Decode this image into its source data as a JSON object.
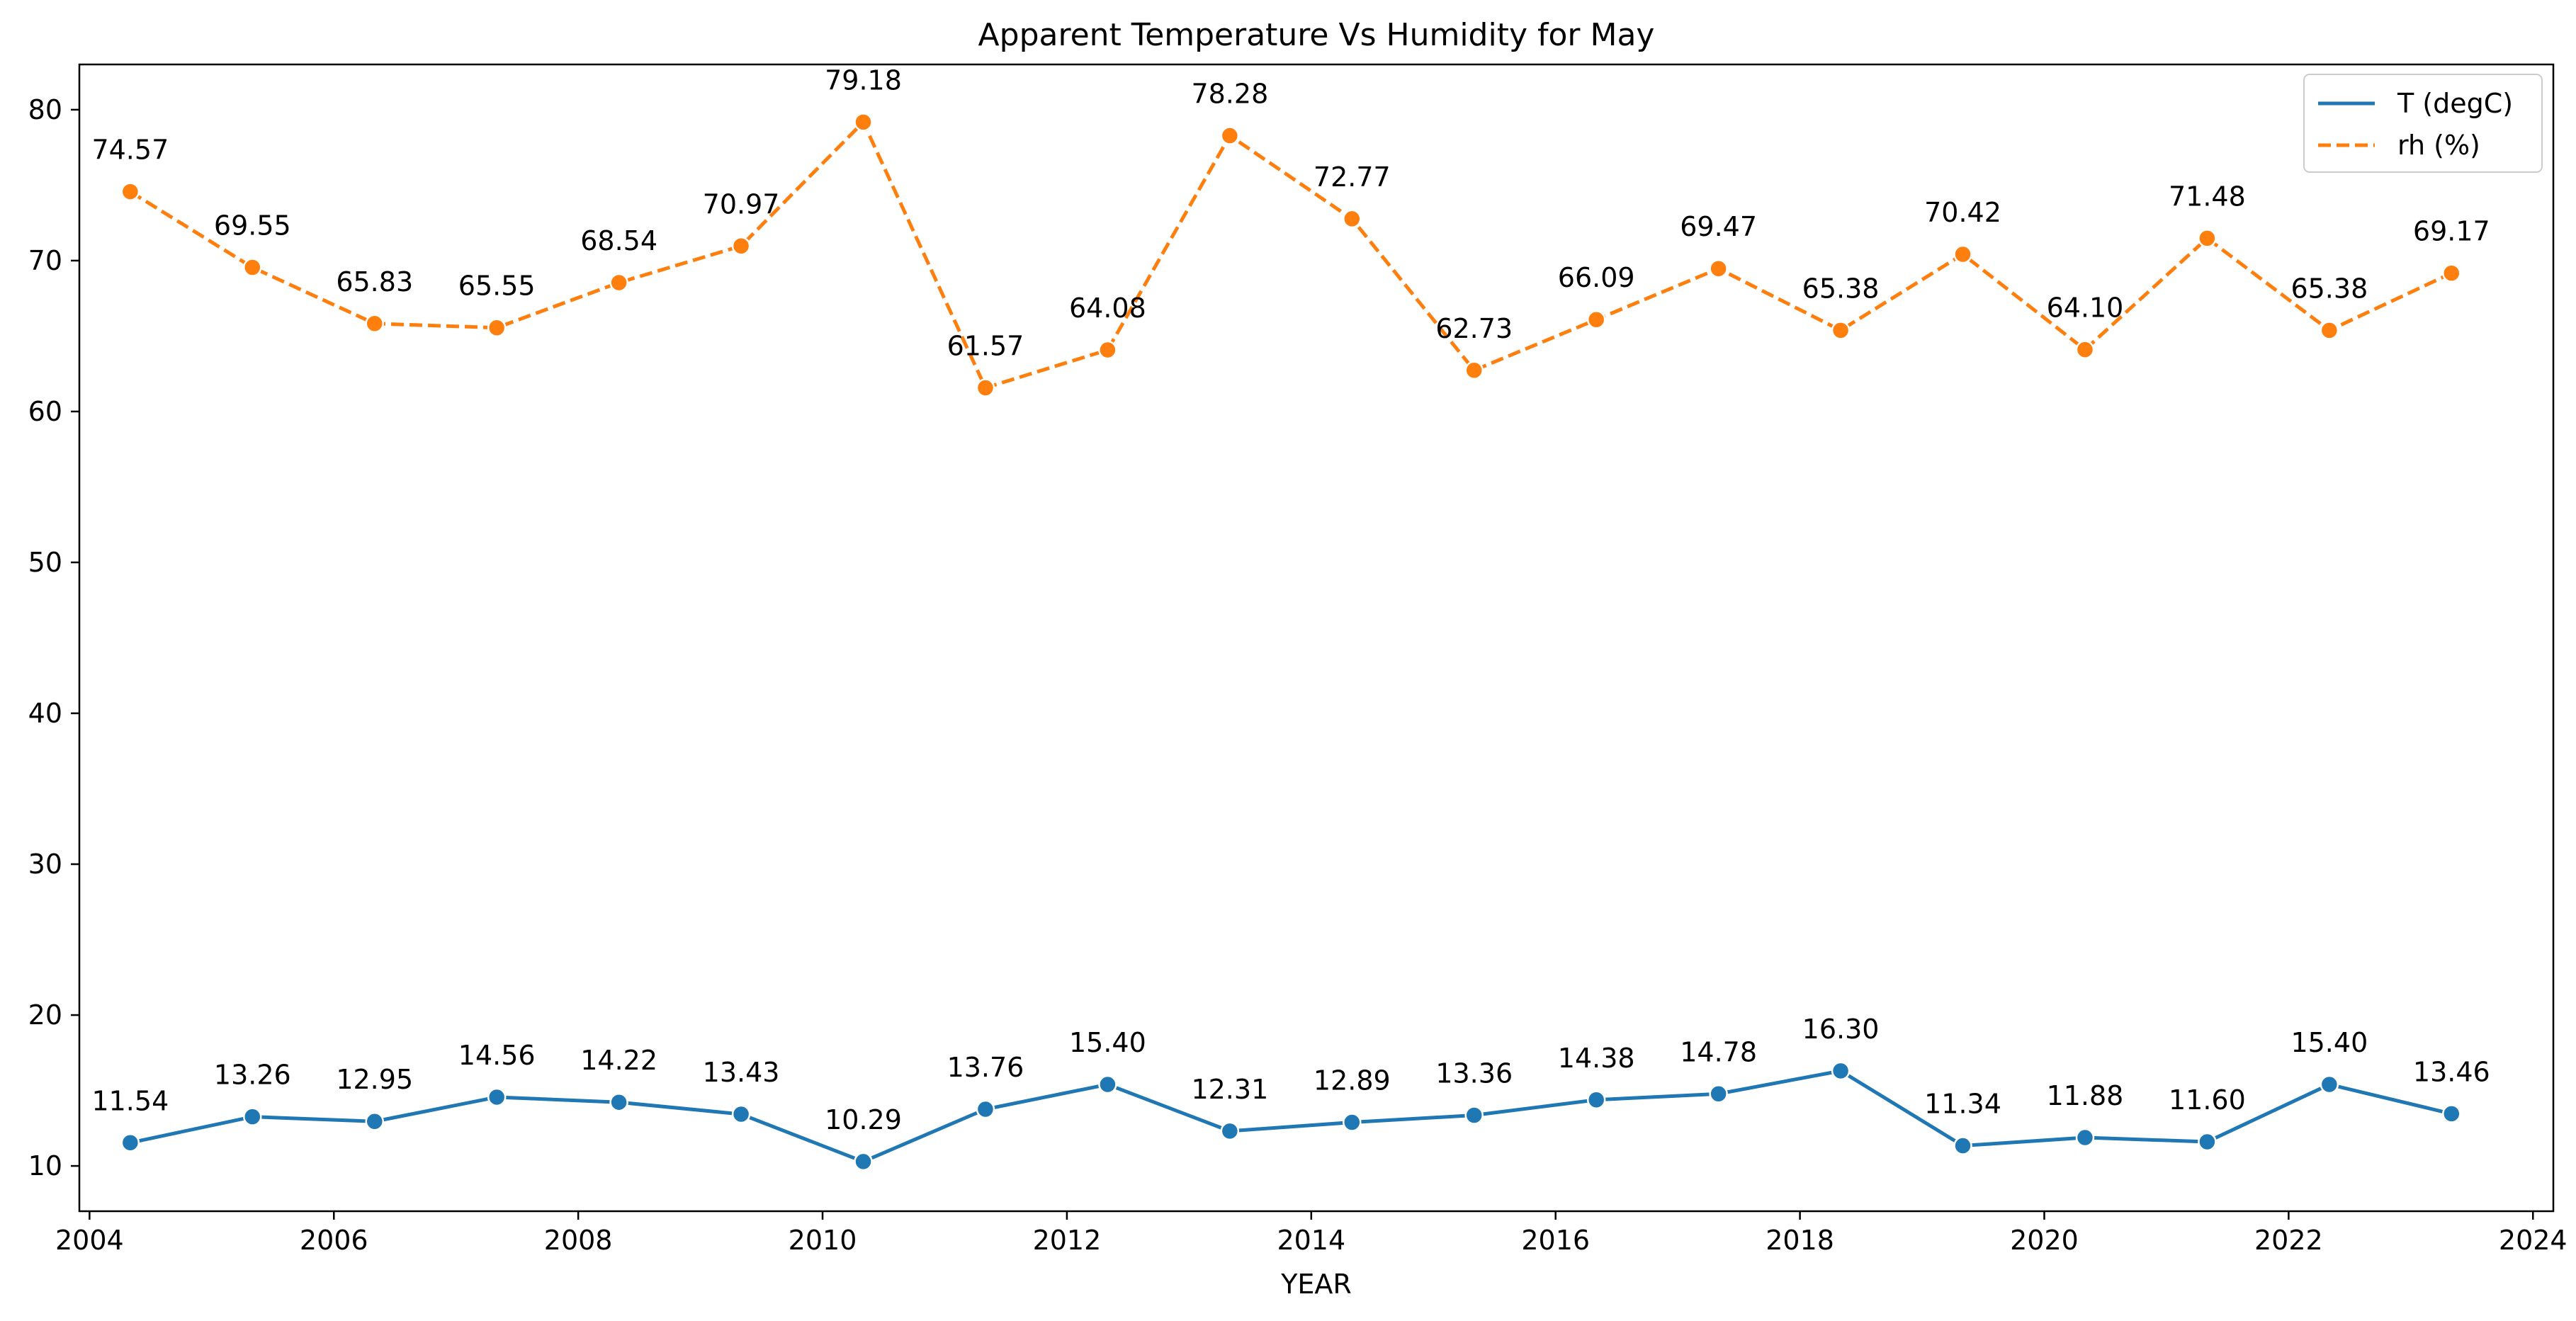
{
  "chart_data": {
    "type": "line",
    "title": "Apparent Temperature Vs Humidity for May",
    "xlabel": "YEAR",
    "ylabel": "",
    "xlim": [
      "2003-12",
      "2024-03"
    ],
    "ylim": [
      7,
      83
    ],
    "x_ticks": [
      "2004",
      "2006",
      "2008",
      "2010",
      "2012",
      "2014",
      "2016",
      "2018",
      "2020",
      "2022",
      "2024"
    ],
    "y_ticks": [
      "10",
      "20",
      "30",
      "40",
      "50",
      "60",
      "70",
      "80"
    ],
    "x": [
      "2004-05",
      "2005-05",
      "2006-05",
      "2007-05",
      "2008-05",
      "2009-05",
      "2010-05",
      "2011-05",
      "2012-05",
      "2013-05",
      "2014-05",
      "2015-05",
      "2016-05",
      "2017-05",
      "2018-05",
      "2019-05",
      "2020-05",
      "2021-05",
      "2022-05",
      "2023-05"
    ],
    "series": [
      {
        "name": "T (degC)",
        "color": "#1f77b4",
        "line_style": "solid",
        "values": [
          11.54,
          13.26,
          12.95,
          14.56,
          14.22,
          13.43,
          10.29,
          13.76,
          15.4,
          12.31,
          12.89,
          13.36,
          14.38,
          14.78,
          16.3,
          11.34,
          11.88,
          11.6,
          15.4,
          13.46
        ],
        "labels": [
          "11.54",
          "13.26",
          "12.95",
          "14.56",
          "14.22",
          "13.43",
          "10.29",
          "13.76",
          "15.40",
          "12.31",
          "12.89",
          "13.36",
          "14.38",
          "14.78",
          "16.30",
          "11.34",
          "11.88",
          "11.60",
          "15.40",
          "13.46"
        ]
      },
      {
        "name": "rh (%)",
        "color": "#ff7f0e",
        "line_style": "dashed",
        "values": [
          74.57,
          69.55,
          65.83,
          65.55,
          68.54,
          70.97,
          79.18,
          61.57,
          64.08,
          78.28,
          72.77,
          62.73,
          66.09,
          69.47,
          65.38,
          70.42,
          64.1,
          71.48,
          65.38,
          69.17
        ],
        "labels": [
          "74.57",
          "69.55",
          "65.83",
          "65.55",
          "68.54",
          "70.97",
          "79.18",
          "61.57",
          "64.08",
          "78.28",
          "72.77",
          "62.73",
          "66.09",
          "69.47",
          "65.38",
          "70.42",
          "64.10",
          "71.48",
          "65.38",
          "69.17"
        ]
      }
    ],
    "grid": false,
    "legend_position": "top-right"
  }
}
